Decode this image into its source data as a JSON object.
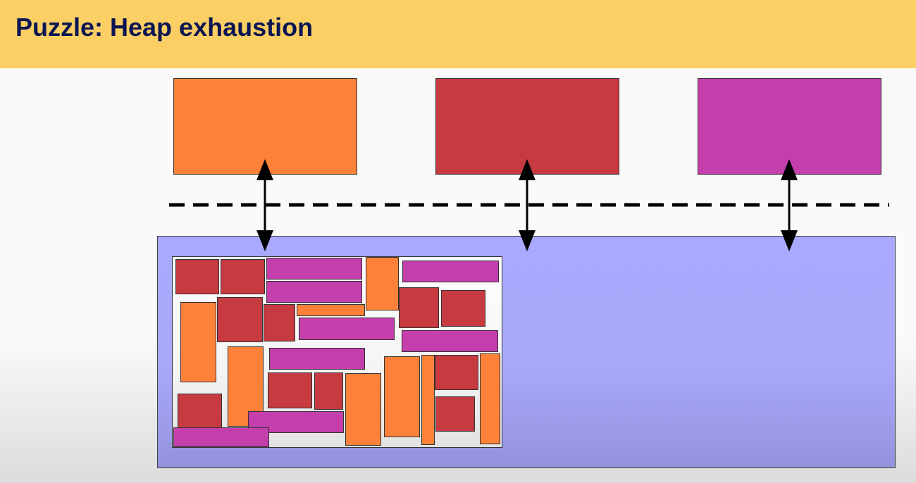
{
  "header": {
    "title": "Puzzle: Heap exhaustion"
  },
  "colors": {
    "banner": "#fbcf63",
    "title_text": "#0b1553",
    "orange": "#fd8139",
    "red": "#c63a40",
    "magenta": "#c43eac",
    "heap": "#a9a9fd"
  },
  "diagram": {
    "top_blocks": [
      "orange",
      "red",
      "magenta"
    ],
    "arrows": [
      "bidirectional",
      "bidirectional",
      "bidirectional"
    ],
    "divider": "dashed",
    "heap_chunks": [
      {
        "color": "red"
      },
      {
        "color": "red"
      },
      {
        "color": "magenta"
      },
      {
        "color": "magenta"
      },
      {
        "color": "orange"
      },
      {
        "color": "magenta"
      },
      {
        "color": "red"
      },
      {
        "color": "red"
      },
      {
        "color": "orange"
      },
      {
        "color": "red"
      },
      {
        "color": "red"
      },
      {
        "color": "orange"
      },
      {
        "color": "magenta"
      },
      {
        "color": "magenta"
      },
      {
        "color": "orange"
      },
      {
        "color": "magenta"
      },
      {
        "color": "red"
      },
      {
        "color": "red"
      },
      {
        "color": "orange"
      },
      {
        "color": "orange"
      },
      {
        "color": "orange"
      },
      {
        "color": "red"
      },
      {
        "color": "orange"
      },
      {
        "color": "red"
      },
      {
        "color": "red"
      },
      {
        "color": "magenta"
      },
      {
        "color": "magenta"
      },
      {
        "color": "red"
      },
      {
        "color": "orange"
      }
    ]
  }
}
